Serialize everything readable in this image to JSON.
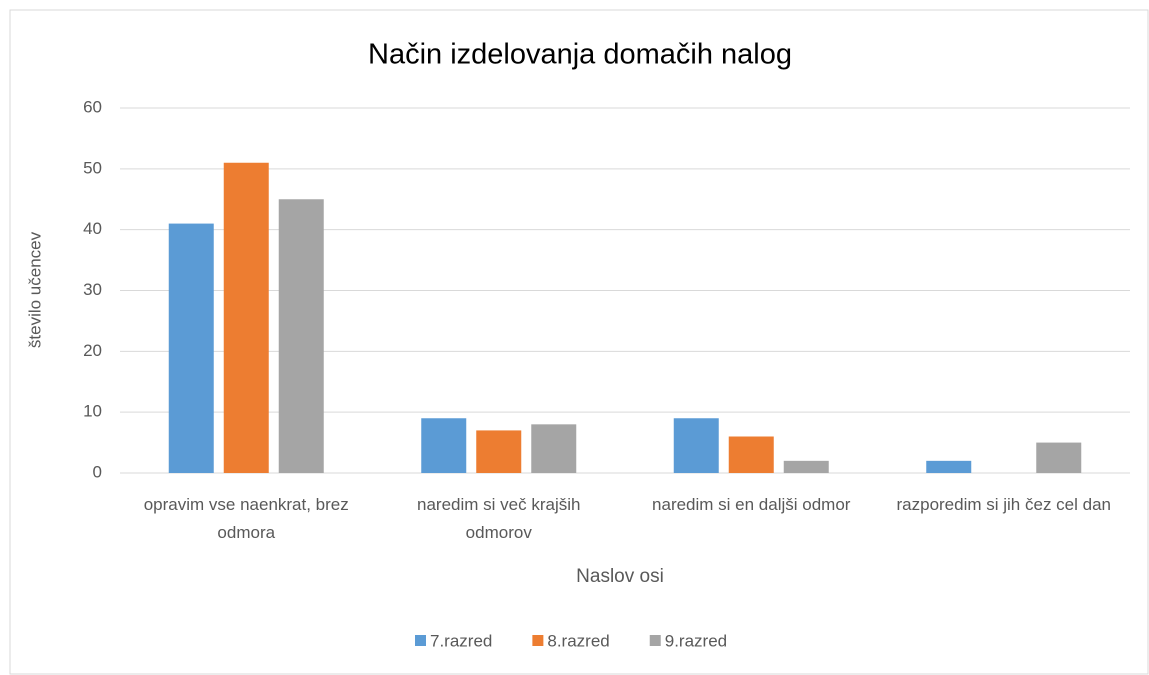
{
  "chart_data": {
    "type": "bar",
    "title": "Način izdelovanja domačih nalog",
    "y_label": "število učencev",
    "x_label": "Naslov osi",
    "categories": [
      "opravim vse naenkrat, brez odmora",
      "naredim si več krajših odmorov",
      "naredim si en daljši odmor",
      "razporedim si jih čez cel dan"
    ],
    "series": [
      {
        "name": "7.razred",
        "color": "#5b9bd5",
        "values": [
          41,
          9,
          9,
          2
        ]
      },
      {
        "name": "8.razred",
        "color": "#ed7d31",
        "values": [
          51,
          7,
          6,
          0
        ]
      },
      {
        "name": "9.razred",
        "color": "#a5a5a5",
        "values": [
          45,
          8,
          2,
          5
        ]
      }
    ],
    "ylim": [
      0,
      60
    ],
    "yticks": [
      0,
      10,
      20,
      30,
      40,
      50,
      60
    ],
    "grid": true,
    "legend": "bottom"
  }
}
